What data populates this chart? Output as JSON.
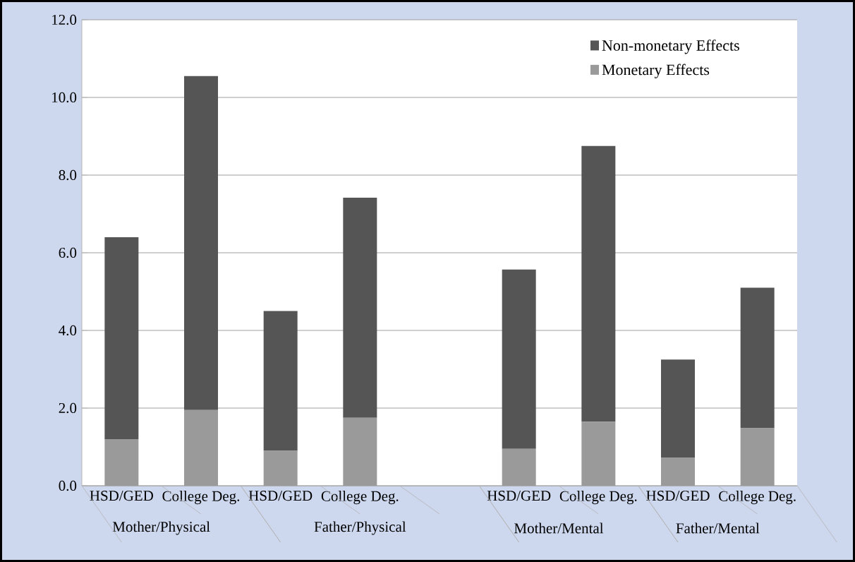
{
  "chart_data": {
    "type": "bar",
    "stacked": true,
    "categories": [
      "HSD/GED",
      "College Deg.",
      "HSD/GED",
      "College Deg.",
      null,
      "HSD/GED",
      "College Deg.",
      "HSD/GED",
      "College Deg."
    ],
    "series": [
      {
        "name": "Monetary Effects",
        "color": "#9a9a9a",
        "values": [
          1.2,
          1.95,
          0.9,
          1.75,
          null,
          0.95,
          1.65,
          0.72,
          1.48
        ]
      },
      {
        "name": "Non-monetary Effects",
        "color": "#555555",
        "values": [
          5.2,
          8.6,
          3.6,
          5.67,
          null,
          4.62,
          7.1,
          2.53,
          3.62
        ]
      }
    ],
    "ylim": [
      0,
      12
    ],
    "yticks": [
      {
        "value": 0,
        "label": "0.0"
      },
      {
        "value": 2,
        "label": "2.0"
      },
      {
        "value": 4,
        "label": "4.0"
      },
      {
        "value": 6,
        "label": "6.0"
      },
      {
        "value": 8,
        "label": "8.0"
      },
      {
        "value": 10,
        "label": "10.0"
      },
      {
        "value": 12,
        "label": "12.0"
      }
    ],
    "grid": "y",
    "legend": "top right",
    "annotations": [
      "Mother/Physical",
      "Father/Physical",
      "Mother/Mental",
      "Father/Mental"
    ]
  }
}
